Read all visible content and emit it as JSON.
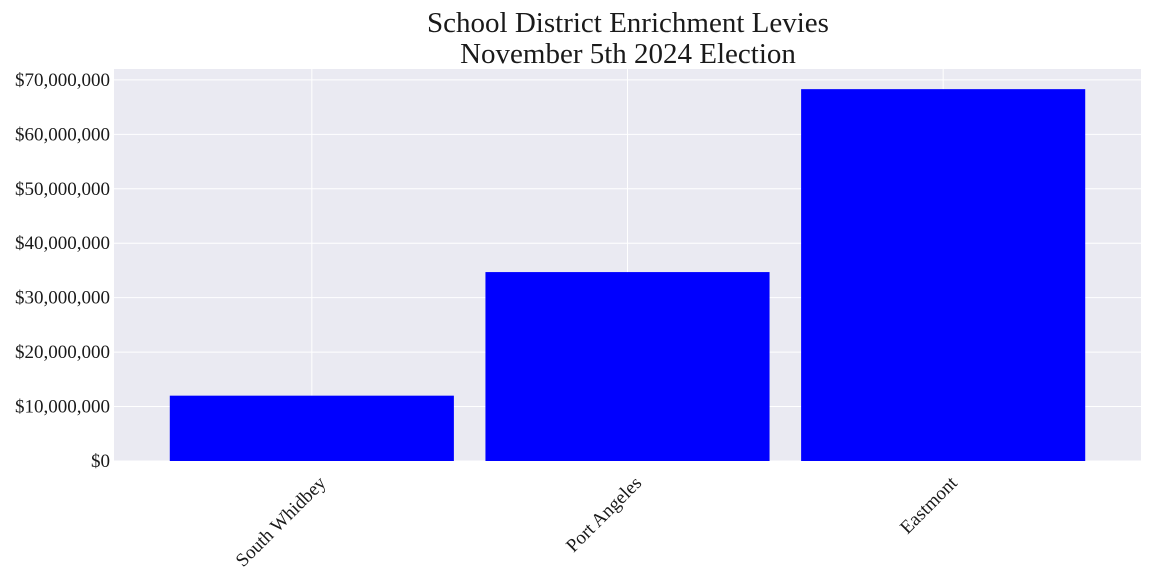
{
  "chart_data": {
    "type": "bar",
    "title_lines": [
      "School District Enrichment Levies",
      "November 5th 2024 Election"
    ],
    "xlabel": "",
    "ylabel": "",
    "categories": [
      "South Whidbey",
      "Port Angeles",
      "Eastmont"
    ],
    "values": [
      12000000,
      34700000,
      68300000
    ],
    "ylim": [
      0,
      72000000
    ],
    "yticks": [
      0,
      10000000,
      20000000,
      30000000,
      40000000,
      50000000,
      60000000,
      70000000
    ],
    "ytick_labels": [
      "$0",
      "$10,000,000",
      "$20,000,000",
      "$30,000,000",
      "$40,000,000",
      "$50,000,000",
      "$60,000,000",
      "$70,000,000"
    ],
    "grid": true,
    "bar_color": "#0000ff",
    "background_color": "#eaeaf2",
    "grid_color": "#ffffff"
  }
}
